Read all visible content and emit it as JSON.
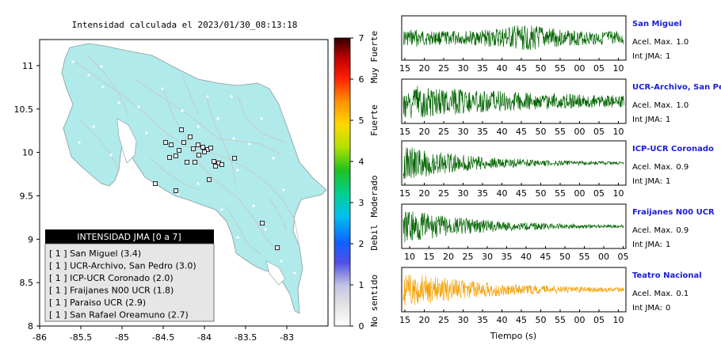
{
  "map": {
    "title": "Intensidad calculada el 2023/01/30_08:13:18",
    "x_ticks": [
      "-86",
      "-85.5",
      "-85",
      "-84.5",
      "-84",
      "-83.5",
      "-83"
    ],
    "y_ticks": [
      "11",
      "10.5",
      "10",
      "9.5",
      "9",
      "8.5",
      "8"
    ],
    "xlim": [
      -86,
      -82.5
    ],
    "ylim": [
      8,
      11.3
    ],
    "land_color": "#b0eaea",
    "legend": {
      "header": "INTENSIDAD JMA [0 a 7]",
      "items": [
        {
          "label": "[ 1 ]  San Miguel (3.4)"
        },
        {
          "label": "[ 1 ]  UCR-Archivo, San Pedro (3.0)"
        },
        {
          "label": "[ 1 ]  ICP-UCR Coronado (2.0)"
        },
        {
          "label": "[ 1 ]  Fraijanes N00 UCR (1.8)"
        },
        {
          "label": "[ 1 ]  Paraiso UCR (2.9)"
        },
        {
          "label": "[ 1 ]  San Rafael Oreamuno (2.7)"
        }
      ]
    }
  },
  "colorbar": {
    "ticks": [
      "7",
      "6",
      "5",
      "4",
      "3",
      "2",
      "1",
      "0"
    ],
    "categories": [
      "Muy Fuerte",
      "Fuerte",
      "Moderado",
      "Debil",
      "No sentido"
    ]
  },
  "waveforms": {
    "xlabel": "Tiempo (s)",
    "acel_prefix": "Acel. Max.",
    "int_prefix": "Int JMA:",
    "panels": [
      {
        "station": "San Miguel",
        "acel": "1.0",
        "int": "1",
        "color": "#006400",
        "ticks": [
          "15",
          "20",
          "25",
          "30",
          "35",
          "40",
          "45",
          "50",
          "55",
          "00",
          "05",
          "10"
        ]
      },
      {
        "station": "UCR-Archivo, San Pedro",
        "acel": "1.0",
        "int": "1",
        "color": "#006400",
        "ticks": [
          "15",
          "20",
          "25",
          "30",
          "35",
          "40",
          "45",
          "50",
          "55",
          "00",
          "05",
          "10"
        ]
      },
      {
        "station": "ICP-UCR Coronado",
        "acel": "0.9",
        "int": "1",
        "color": "#006400",
        "ticks": [
          "15",
          "20",
          "25",
          "30",
          "35",
          "40",
          "45",
          "50",
          "55",
          "00",
          "05",
          "10"
        ]
      },
      {
        "station": "Fraijanes N00 UCR",
        "acel": "0.9",
        "int": "1",
        "color": "#006400",
        "ticks": [
          "10",
          "15",
          "20",
          "25",
          "30",
          "35",
          "40",
          "45",
          "50",
          "55",
          "00",
          "05"
        ]
      },
      {
        "station": "Teatro Nacional",
        "acel": "0.1",
        "int": "0",
        "color": "#f5a000",
        "ticks": [
          "15",
          "20",
          "25",
          "30",
          "35",
          "40",
          "45",
          "50",
          "55",
          "00",
          "05",
          "10"
        ]
      }
    ]
  },
  "chart_data": {
    "type": "scatter",
    "title": "Intensidad calculada el 2023/01/30_08:13:18",
    "xlim": [
      -86,
      -82.5
    ],
    "ylim": [
      8,
      11.3
    ],
    "stations": [
      {
        "name": "San Miguel",
        "pga": 3.4,
        "jma": 1
      },
      {
        "name": "UCR-Archivo, San Pedro",
        "pga": 3.0,
        "jma": 1
      },
      {
        "name": "ICP-UCR Coronado",
        "pga": 2.0,
        "jma": 1
      },
      {
        "name": "Fraijanes N00 UCR",
        "pga": 1.8,
        "jma": 1
      },
      {
        "name": "Paraiso UCR",
        "pga": 2.9,
        "jma": 1
      },
      {
        "name": "San Rafael Oreamuno",
        "pga": 2.7,
        "jma": 1
      }
    ],
    "colorbar_range": [
      0,
      7
    ]
  }
}
